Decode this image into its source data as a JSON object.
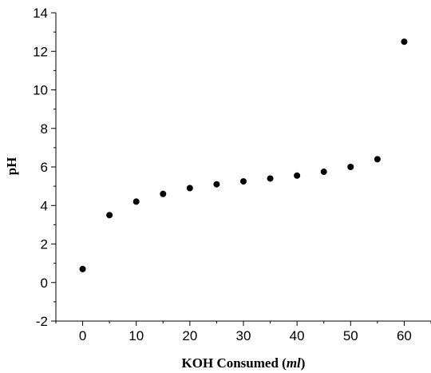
{
  "chart_data": {
    "type": "scatter",
    "xlabel_main": "KOH Consumed (",
    "xlabel_unit": "ml",
    "xlabel_close": ")",
    "ylabel": "pH",
    "xlim": [
      -5,
      65
    ],
    "ylim": [
      -2,
      14
    ],
    "xticks": [
      0,
      10,
      20,
      30,
      40,
      50,
      60
    ],
    "yticks": [
      -2,
      0,
      2,
      4,
      6,
      8,
      10,
      12,
      14
    ],
    "xminor_step": 5,
    "yminor_step": 1,
    "grid": false,
    "legend": "none",
    "marker_color": "#000000",
    "series": [
      {
        "x": [
          0,
          5,
          10,
          15,
          20,
          25,
          30,
          35,
          40,
          45,
          50,
          55,
          60
        ],
        "y": [
          0.7,
          3.5,
          4.2,
          4.6,
          4.9,
          5.1,
          5.25,
          5.4,
          5.55,
          5.75,
          6.0,
          6.4,
          12.5
        ]
      }
    ]
  }
}
